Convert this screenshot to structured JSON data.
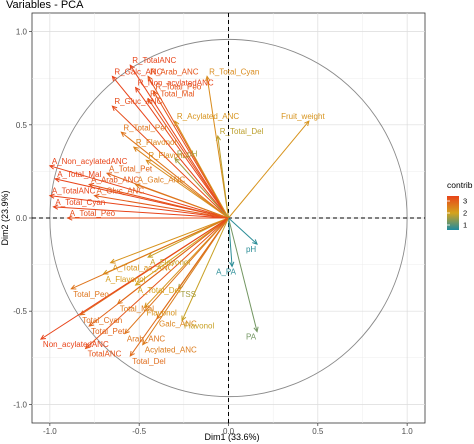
{
  "chart_data": {
    "type": "scatter",
    "title": "Variables - PCA",
    "xlabel": "Dim1 (33.6%)",
    "ylabel": "Dim2 (23.9%)",
    "xlim": [
      -1.1,
      1.1
    ],
    "ylim": [
      -1.1,
      1.1
    ],
    "x_ticks": [
      "-1.0",
      "-0.5",
      "0.0",
      "0.5",
      "1.0"
    ],
    "y_ticks": [
      "-1.0",
      "-0.5",
      "0.0",
      "0.5",
      "1.0"
    ],
    "grid": true,
    "legend_position": "right",
    "legend": {
      "title": "contrib",
      "ticks": [
        "3",
        "2",
        "1"
      ]
    },
    "colors": {
      "low": "#1f8ba0",
      "mid": "#d4a31c",
      "high": "#e8441a"
    },
    "variables": [
      {
        "name": "R_TotalANC",
        "x": -0.55,
        "y": 0.82,
        "contrib": 3.3
      },
      {
        "name": "R_Galc_ANC",
        "x": -0.65,
        "y": 0.76,
        "contrib": 3.2
      },
      {
        "name": "R_Arab_ANC",
        "x": -0.45,
        "y": 0.76,
        "contrib": 3.0
      },
      {
        "name": "R_Non_acylatedANC",
        "x": -0.52,
        "y": 0.7,
        "contrib": 3.3
      },
      {
        "name": "R_Total_Peo",
        "x": -0.42,
        "y": 0.68,
        "contrib": 3.0
      },
      {
        "name": "R_Total_Mal",
        "x": -0.45,
        "y": 0.64,
        "contrib": 3.0
      },
      {
        "name": "R_Gluc_ANC",
        "x": -0.65,
        "y": 0.6,
        "contrib": 3.1
      },
      {
        "name": "R_Total_Cyan",
        "x": -0.12,
        "y": 0.76,
        "contrib": 2.3
      },
      {
        "name": "R_Acylated_ANC",
        "x": -0.3,
        "y": 0.52,
        "contrib": 2.2
      },
      {
        "name": "R_Total_Pet",
        "x": -0.6,
        "y": 0.46,
        "contrib": 2.6
      },
      {
        "name": "R_Total_Del",
        "x": -0.06,
        "y": 0.44,
        "contrib": 1.8
      },
      {
        "name": "R_Flavonol",
        "x": -0.53,
        "y": 0.38,
        "contrib": 2.4
      },
      {
        "name": "Fruit_weight",
        "x": 0.45,
        "y": 0.52,
        "contrib": 2.2
      },
      {
        "name": "R_Flavonol",
        "x": -0.46,
        "y": 0.31,
        "contrib": 2.3
      },
      {
        "name": "R_pH",
        "x": -0.3,
        "y": 0.32,
        "contrib": 1.6
      },
      {
        "name": "A_Non_acylatedANC",
        "x": -1.0,
        "y": 0.28,
        "contrib": 3.5
      },
      {
        "name": "A_Total_Pet",
        "x": -0.68,
        "y": 0.24,
        "contrib": 2.8
      },
      {
        "name": "A_Total_Mal",
        "x": -0.97,
        "y": 0.21,
        "contrib": 3.4
      },
      {
        "name": "A_Arab_ANC",
        "x": -0.78,
        "y": 0.18,
        "contrib": 3.0
      },
      {
        "name": "A_Galc_ANC",
        "x": -0.52,
        "y": 0.18,
        "contrib": 2.5
      },
      {
        "name": "A_TotalANC",
        "x": -1.0,
        "y": 0.12,
        "contrib": 3.5
      },
      {
        "name": "A_Gluc_ANC",
        "x": -0.75,
        "y": 0.12,
        "contrib": 2.9
      },
      {
        "name": "A_Total_Cyan",
        "x": -0.98,
        "y": 0.06,
        "contrib": 3.3
      },
      {
        "name": "A_Total_Peo",
        "x": -0.9,
        "y": 0.0,
        "contrib": 3.1
      },
      {
        "name": "pH",
        "x": 0.16,
        "y": -0.14,
        "contrib": 0.6
      },
      {
        "name": "A_PA",
        "x": 0.02,
        "y": -0.26,
        "contrib": 0.6
      },
      {
        "name": "A_Total_ac_ANC",
        "x": -0.66,
        "y": -0.24,
        "contrib": 2.2
      },
      {
        "name": "A_Flavonol",
        "x": -0.45,
        "y": -0.21,
        "contrib": 1.9
      },
      {
        "name": "A_Flavonol",
        "x": -0.7,
        "y": -0.3,
        "contrib": 2.1
      },
      {
        "name": "A_Total_Del",
        "x": -0.52,
        "y": -0.36,
        "contrib": 2.0
      },
      {
        "name": "Total_Peo",
        "x": -0.88,
        "y": -0.38,
        "contrib": 2.6
      },
      {
        "name": "TSS",
        "x": -0.28,
        "y": -0.38,
        "contrib": 1.6
      },
      {
        "name": "Total_Mal",
        "x": -0.62,
        "y": -0.46,
        "contrib": 2.5
      },
      {
        "name": "Flavonol",
        "x": -0.47,
        "y": -0.48,
        "contrib": 2.2
      },
      {
        "name": "Total_Cyan",
        "x": -0.83,
        "y": -0.52,
        "contrib": 2.7
      },
      {
        "name": "Galc_ANC",
        "x": -0.4,
        "y": -0.54,
        "contrib": 2.4
      },
      {
        "name": "Flavonol",
        "x": -0.26,
        "y": -0.55,
        "contrib": 1.9
      },
      {
        "name": "Total_Pet",
        "x": -0.78,
        "y": -0.58,
        "contrib": 2.8
      },
      {
        "name": "Arab_ANC",
        "x": -0.58,
        "y": -0.62,
        "contrib": 2.6
      },
      {
        "name": "Non_acylatedANC",
        "x": -1.05,
        "y": -0.65,
        "contrib": 3.3
      },
      {
        "name": "Acylated_ANC",
        "x": -0.48,
        "y": -0.68,
        "contrib": 2.5
      },
      {
        "name": "TotalANC",
        "x": -0.8,
        "y": -0.7,
        "contrib": 3.0
      },
      {
        "name": "Total_Del",
        "x": -0.55,
        "y": -0.74,
        "contrib": 2.7
      },
      {
        "name": "PA",
        "x": 0.16,
        "y": -0.61,
        "contrib": 1.2
      }
    ]
  }
}
